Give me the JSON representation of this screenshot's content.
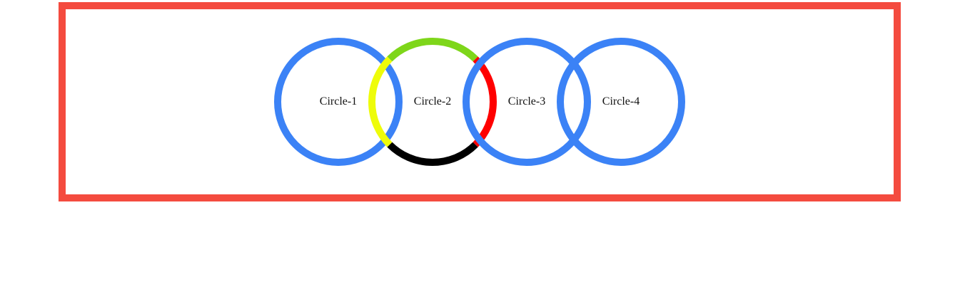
{
  "circles": [
    {
      "label": "Circle-1",
      "color": "#3b82f6"
    },
    {
      "label": "Circle-2",
      "colors": {
        "top": "#7ed61a",
        "left": "#eefc0a",
        "right": "#ff0000",
        "bottom": "#000000"
      }
    },
    {
      "label": "Circle-3",
      "color": "#3b82f6"
    },
    {
      "label": "Circle-4",
      "color": "#3b82f6"
    }
  ],
  "frame": {
    "border_color": "#f44b3f"
  }
}
